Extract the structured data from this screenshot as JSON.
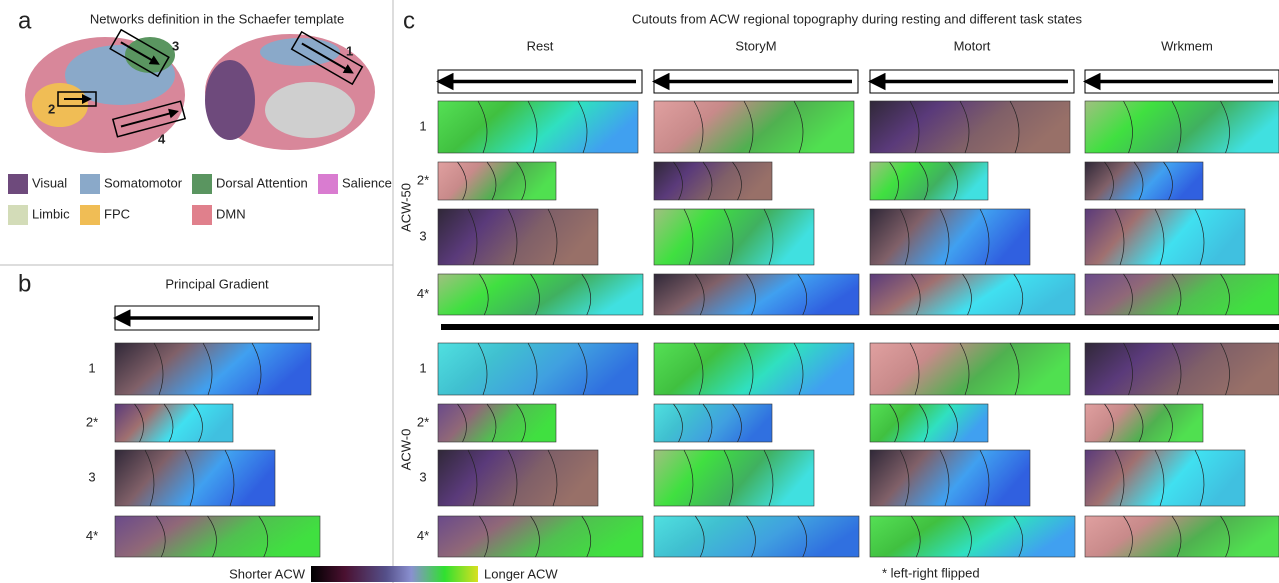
{
  "panel_a": {
    "letter": "a",
    "title": "Networks definition in the Schaefer template",
    "brain_labels": [
      "1",
      "2",
      "3",
      "4"
    ],
    "networks": [
      {
        "name": "Visual",
        "color": "#6e4a7c"
      },
      {
        "name": "Somatomotor",
        "color": "#8aa9c9"
      },
      {
        "name": "Dorsal Attention",
        "color": "#5a9560"
      },
      {
        "name": "Salience",
        "color": "#d97cd0"
      },
      {
        "name": "Limbic",
        "color": "#d3dcb8"
      },
      {
        "name": "FPC",
        "color": "#f0bd55"
      },
      {
        "name": "DMN",
        "color": "#e0808c"
      }
    ]
  },
  "panel_b": {
    "letter": "b",
    "title": "Principal Gradient",
    "rows": [
      "1",
      "2*",
      "3",
      "4*"
    ]
  },
  "panel_c": {
    "letter": "c",
    "title": "Cutouts from ACW regional topography during resting and different task states",
    "columns": [
      "Rest",
      "StoryM",
      "Motort",
      "Wrkmem"
    ],
    "groups": [
      {
        "label": "ACW-50",
        "rows": [
          "1",
          "2*",
          "3",
          "4*"
        ]
      },
      {
        "label": "ACW-0",
        "rows": [
          "1",
          "2*",
          "3",
          "4*"
        ]
      }
    ]
  },
  "colorbar": {
    "low_label": "Shorter ACW",
    "high_label": "Longer ACW"
  },
  "footnote": "* left-right flipped"
}
